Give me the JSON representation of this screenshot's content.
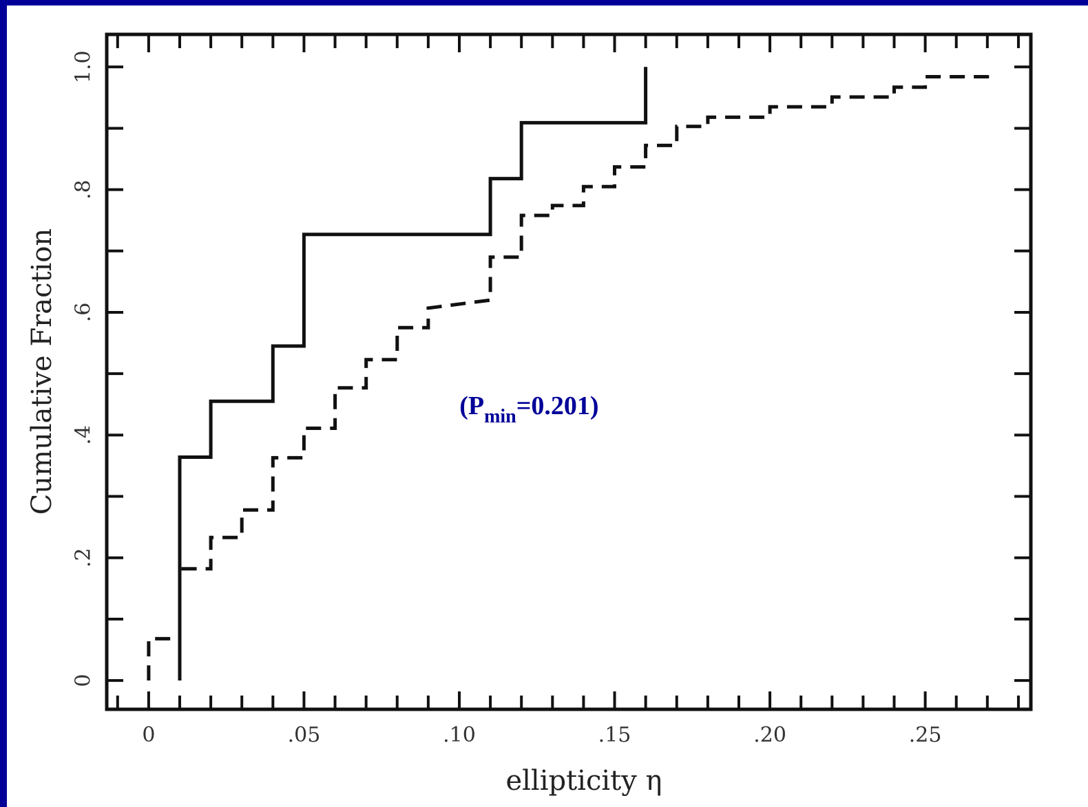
{
  "chart_data": {
    "type": "line",
    "step": true,
    "title": "",
    "xlabel": "ellipticity η",
    "ylabel": "Cumulative Fraction",
    "xlim": [
      -0.0135,
      0.284
    ],
    "ylim": [
      -0.047,
      1.053
    ],
    "x_ticks": [
      0,
      0.05,
      0.1,
      0.15,
      0.2,
      0.25
    ],
    "x_tick_labels": [
      "0",
      ".05",
      ".10",
      ".15",
      ".20",
      ".25"
    ],
    "x_minor_step": 0.01,
    "y_ticks": [
      0,
      0.2,
      0.4,
      0.6,
      0.8,
      1.0
    ],
    "y_tick_labels": [
      "0",
      ".2",
      ".4",
      ".6",
      ".8",
      "1.0"
    ],
    "y_minor_step": 0.1,
    "grid": false,
    "legend": "none",
    "series": [
      {
        "style": "solid",
        "color": "#111111",
        "points": [
          [
            0.01,
            0.0
          ],
          [
            0.01,
            0.364
          ],
          [
            0.02,
            0.364
          ],
          [
            0.02,
            0.455
          ],
          [
            0.04,
            0.455
          ],
          [
            0.04,
            0.545
          ],
          [
            0.05,
            0.545
          ],
          [
            0.05,
            0.727
          ],
          [
            0.11,
            0.727
          ],
          [
            0.11,
            0.818
          ],
          [
            0.12,
            0.818
          ],
          [
            0.12,
            0.909
          ],
          [
            0.16,
            0.909
          ],
          [
            0.16,
            1.0
          ]
        ]
      },
      {
        "style": "dashed",
        "color": "#111111",
        "points": [
          [
            0.0,
            0.0
          ],
          [
            0.0,
            0.068
          ],
          [
            0.01,
            0.068
          ],
          [
            0.01,
            0.182
          ],
          [
            0.02,
            0.182
          ],
          [
            0.02,
            0.233
          ],
          [
            0.03,
            0.233
          ],
          [
            0.03,
            0.278
          ],
          [
            0.04,
            0.278
          ],
          [
            0.04,
            0.363
          ],
          [
            0.05,
            0.363
          ],
          [
            0.05,
            0.411
          ],
          [
            0.06,
            0.411
          ],
          [
            0.06,
            0.477
          ],
          [
            0.07,
            0.477
          ],
          [
            0.07,
            0.523
          ],
          [
            0.08,
            0.523
          ],
          [
            0.08,
            0.575
          ],
          [
            0.09,
            0.575
          ],
          [
            0.09,
            0.607
          ],
          [
            0.11,
            0.62
          ],
          [
            0.11,
            0.69
          ],
          [
            0.12,
            0.69
          ],
          [
            0.12,
            0.758
          ],
          [
            0.13,
            0.758
          ],
          [
            0.13,
            0.774
          ],
          [
            0.14,
            0.774
          ],
          [
            0.14,
            0.805
          ],
          [
            0.15,
            0.805
          ],
          [
            0.15,
            0.837
          ],
          [
            0.16,
            0.837
          ],
          [
            0.16,
            0.872
          ],
          [
            0.17,
            0.872
          ],
          [
            0.17,
            0.903
          ],
          [
            0.18,
            0.903
          ],
          [
            0.18,
            0.918
          ],
          [
            0.2,
            0.918
          ],
          [
            0.2,
            0.935
          ],
          [
            0.22,
            0.935
          ],
          [
            0.22,
            0.951
          ],
          [
            0.24,
            0.951
          ],
          [
            0.24,
            0.967
          ],
          [
            0.25,
            0.967
          ],
          [
            0.25,
            0.984
          ],
          [
            0.27,
            0.984
          ],
          [
            0.27,
            1.0
          ]
        ]
      }
    ],
    "annotations": [
      {
        "x": 0.12,
        "y": 0.45,
        "prefix": "(P",
        "sub": "min",
        "suffix": "=0.201)",
        "color": "#000099"
      }
    ]
  }
}
